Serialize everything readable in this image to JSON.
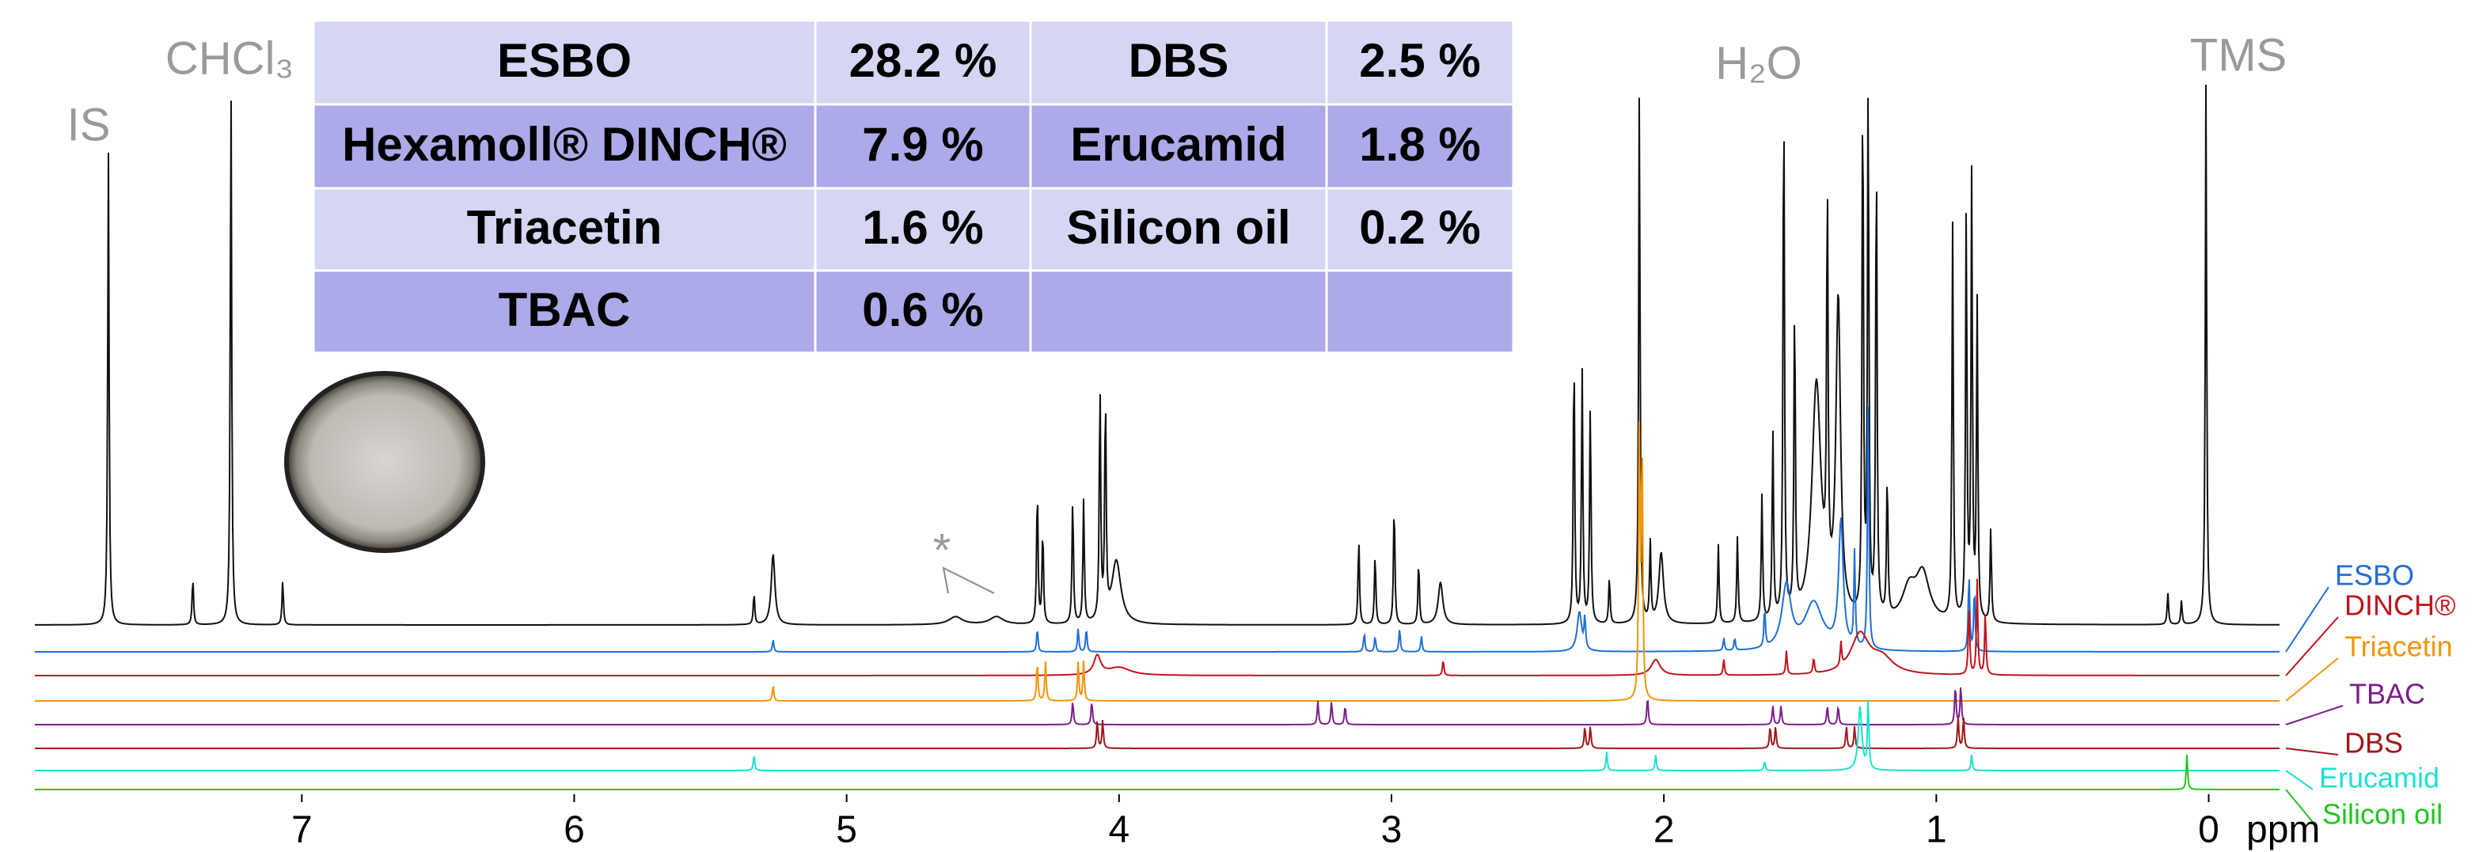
{
  "table": {
    "rows": [
      [
        "ESBO",
        "28.2 %",
        "DBS",
        "2.5 %"
      ],
      [
        "Hexamoll® DINCH®",
        "7.9 %",
        "Erucamid",
        "1.8 %"
      ],
      [
        "Triacetin",
        "1.6 %",
        "Silicon oil",
        "0.2 %"
      ],
      [
        "TBAC",
        "0.6 %"
      ]
    ]
  },
  "labels": {
    "is": "IS",
    "chcl3": "CHCl₃",
    "h2o": "H₂O",
    "tms": "TMS",
    "asterisk": "*"
  },
  "spectrum": {
    "type": "nmr",
    "x_label": "ppm",
    "xlim": [
      7.98,
      -0.26
    ],
    "xticks": [
      7,
      6,
      5,
      4,
      3,
      2,
      1,
      0
    ],
    "traces": [
      {
        "color": "#111111",
        "peaks": [
          [
            7.71,
            300
          ],
          [
            7.4,
            30
          ],
          [
            7.26,
            343
          ],
          [
            7.07,
            28
          ],
          [
            5.34,
            20
          ],
          [
            5.27,
            45,
            0.008
          ],
          [
            4.6,
            5,
            0.03
          ],
          [
            4.45,
            5,
            0.03
          ],
          [
            4.3,
            87
          ],
          [
            4.28,
            60
          ],
          [
            4.17,
            80
          ],
          [
            4.13,
            78
          ],
          [
            4.07,
            148
          ],
          [
            4.05,
            140
          ],
          [
            4.01,
            40,
            0.02
          ],
          [
            3.12,
            55
          ],
          [
            3.06,
            45
          ],
          [
            2.99,
            78
          ],
          [
            2.9,
            40
          ],
          [
            2.82,
            27,
            0.01
          ],
          [
            2.33,
            175
          ],
          [
            2.3,
            160
          ],
          [
            2.27,
            140
          ],
          [
            2.2,
            30
          ],
          [
            2.09,
            343
          ],
          [
            2.05,
            50
          ],
          [
            2.01,
            45,
            0.01
          ],
          [
            1.8,
            50
          ],
          [
            1.73,
            55
          ],
          [
            1.64,
            80
          ],
          [
            1.6,
            120
          ],
          [
            1.56,
            343
          ],
          [
            1.52,
            200
          ],
          [
            1.44,
            150,
            0.02
          ],
          [
            1.4,
            250
          ],
          [
            1.36,
            200,
            0.01
          ],
          [
            1.27,
            343
          ],
          [
            1.25,
            343
          ],
          [
            1.22,
            300
          ],
          [
            1.18,
            90
          ],
          [
            1.1,
            20,
            0.03
          ],
          [
            1.05,
            30,
            0.03
          ],
          [
            0.94,
            250
          ],
          [
            0.89,
            260
          ],
          [
            0.87,
            280
          ],
          [
            0.85,
            200
          ],
          [
            0.8,
            60
          ],
          [
            0.15,
            20
          ],
          [
            0.1,
            15
          ],
          [
            0.01,
            343
          ]
        ]
      },
      {
        "name": "ESBO",
        "color": "#1f6fd6",
        "peaks": [
          [
            5.27,
            8
          ],
          [
            4.3,
            15
          ],
          [
            4.15,
            15
          ],
          [
            4.12,
            15
          ],
          [
            3.1,
            12
          ],
          [
            3.06,
            10
          ],
          [
            2.97,
            15
          ],
          [
            2.89,
            10
          ],
          [
            2.31,
            25,
            0.01
          ],
          [
            2.29,
            20
          ],
          [
            1.78,
            8
          ],
          [
            1.74,
            8
          ],
          [
            1.63,
            25
          ],
          [
            1.55,
            40,
            0.02
          ],
          [
            1.45,
            30,
            0.04
          ],
          [
            1.35,
            80,
            0.01
          ],
          [
            1.3,
            60
          ],
          [
            1.25,
            165
          ],
          [
            0.88,
            50
          ],
          [
            0.86,
            40
          ]
        ]
      },
      {
        "name": "DINCH®",
        "color": "#c0141c",
        "peaks": [
          [
            4.08,
            12,
            0.015
          ],
          [
            4.0,
            5,
            0.05
          ],
          [
            2.81,
            10
          ],
          [
            2.03,
            10,
            0.02
          ],
          [
            1.78,
            10
          ],
          [
            1.55,
            15
          ],
          [
            1.45,
            10
          ],
          [
            1.35,
            15
          ],
          [
            1.28,
            25,
            0.04
          ],
          [
            1.2,
            10,
            0.05
          ],
          [
            0.88,
            45
          ],
          [
            0.85,
            60
          ],
          [
            0.82,
            40
          ]
        ]
      },
      {
        "name": "Triacetin",
        "color": "#f0960a",
        "peaks": [
          [
            5.27,
            10
          ],
          [
            4.3,
            25
          ],
          [
            4.27,
            25
          ],
          [
            4.15,
            25
          ],
          [
            4.13,
            25
          ],
          [
            2.09,
            170
          ],
          [
            2.08,
            160
          ]
        ]
      },
      {
        "name": "TBAC",
        "color": "#7b1f8a",
        "peaks": [
          [
            4.17,
            15
          ],
          [
            4.1,
            15
          ],
          [
            3.27,
            15
          ],
          [
            3.22,
            15
          ],
          [
            3.17,
            12
          ],
          [
            2.06,
            18
          ],
          [
            1.6,
            12
          ],
          [
            1.57,
            12
          ],
          [
            1.4,
            12
          ],
          [
            1.36,
            12
          ],
          [
            0.93,
            25
          ],
          [
            0.91,
            25
          ]
        ]
      },
      {
        "name": "DBS",
        "color": "#a01818",
        "peaks": [
          [
            4.08,
            18
          ],
          [
            4.06,
            18
          ],
          [
            2.29,
            14
          ],
          [
            2.27,
            14
          ],
          [
            1.61,
            14
          ],
          [
            1.59,
            14
          ],
          [
            1.33,
            14
          ],
          [
            1.3,
            14
          ],
          [
            0.92,
            20
          ],
          [
            0.9,
            20
          ]
        ]
      },
      {
        "name": "Erucamid",
        "color": "#1ee0d0",
        "peaks": [
          [
            5.34,
            10
          ],
          [
            2.21,
            12
          ],
          [
            2.03,
            10
          ],
          [
            1.63,
            6
          ],
          [
            1.28,
            40,
            0.008
          ],
          [
            1.25,
            45
          ],
          [
            0.87,
            10
          ]
        ]
      },
      {
        "name": "Silicon oil",
        "color": "#1ec81e",
        "peaks": [
          [
            0.08,
            22
          ]
        ]
      }
    ]
  }
}
